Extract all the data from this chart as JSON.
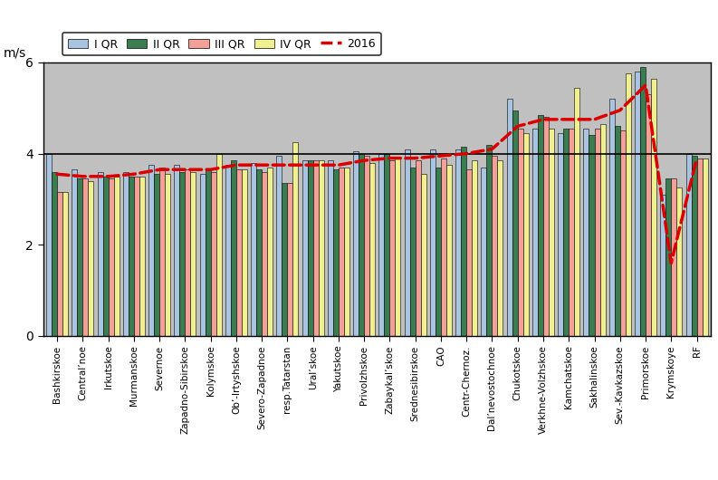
{
  "categories": [
    "Bashkirskoe",
    "Central’noe",
    "Irkutskoe",
    "Murmanskoe",
    "Severnoe",
    "Zapadno-Sibirskoe",
    "Kolymskoe",
    "Ob’-Irtyshskoe",
    "Severo-Zapadnoe",
    "resp.Tatarstan",
    "Ural’skoe",
    "Yakutskoe",
    "Privolzhskoe",
    "Zabaykal’skoe",
    "Srednesibirskoe",
    "CAO",
    "Centr-Chernoz.",
    "Dal’nevostochnoe",
    "Chukotskoe",
    "Verkhne-Volzhskoe",
    "Kamchatskoe",
    "Sakhalinskoe",
    "Sev.-Kavkazskoe",
    "Primorskoe",
    "Krymskoye",
    "RF"
  ],
  "I_QR": [
    4.0,
    3.65,
    3.6,
    3.6,
    3.75,
    3.75,
    3.55,
    3.75,
    3.8,
    3.95,
    3.85,
    3.85,
    4.05,
    4.0,
    4.1,
    4.1,
    4.1,
    3.7,
    5.2,
    4.55,
    4.45,
    4.55,
    5.2,
    5.8,
    3.1,
    4.0
  ],
  "II_QR": [
    3.6,
    3.45,
    3.5,
    3.5,
    3.55,
    3.6,
    3.65,
    3.85,
    3.65,
    3.35,
    3.85,
    3.65,
    4.0,
    4.0,
    3.7,
    3.7,
    4.15,
    4.2,
    4.95,
    4.85,
    4.55,
    4.4,
    4.6,
    5.9,
    3.45,
    3.95
  ],
  "III_QR": [
    3.15,
    3.45,
    3.45,
    3.5,
    3.7,
    3.65,
    3.6,
    3.65,
    3.6,
    3.35,
    3.85,
    3.7,
    3.95,
    3.85,
    3.85,
    3.9,
    3.65,
    3.95,
    4.55,
    4.8,
    4.55,
    4.55,
    4.5,
    5.3,
    3.45,
    3.9
  ],
  "IV_QR": [
    3.15,
    3.4,
    3.5,
    3.5,
    3.55,
    3.6,
    4.0,
    3.65,
    3.7,
    4.25,
    3.85,
    3.7,
    3.8,
    3.9,
    3.55,
    3.75,
    3.85,
    3.85,
    4.45,
    4.55,
    5.45,
    4.65,
    5.75,
    5.65,
    3.25,
    3.9
  ],
  "line_2016": [
    3.55,
    3.5,
    3.5,
    3.55,
    3.65,
    3.65,
    3.65,
    3.75,
    3.75,
    3.75,
    3.75,
    3.75,
    3.85,
    3.9,
    3.9,
    3.95,
    4.0,
    4.1,
    4.6,
    4.75,
    4.75,
    4.75,
    4.95,
    5.5,
    1.6,
    3.9
  ],
  "bar_colors": [
    "#a8c4e0",
    "#3a7d50",
    "#f2a098",
    "#f0f090"
  ],
  "line_color": "#dd0000",
  "bg_color": "#c0c0c0",
  "plot_bg": "#c0c0c0",
  "fig_bg": "#ffffff",
  "ylabel": "m/s",
  "ylim": [
    0,
    6
  ],
  "yticks": [
    0,
    2,
    4,
    6
  ],
  "hline_y": 4.0,
  "legend_labels": [
    "I QR",
    "II QR",
    "III QR",
    "IV QR",
    "2016"
  ]
}
